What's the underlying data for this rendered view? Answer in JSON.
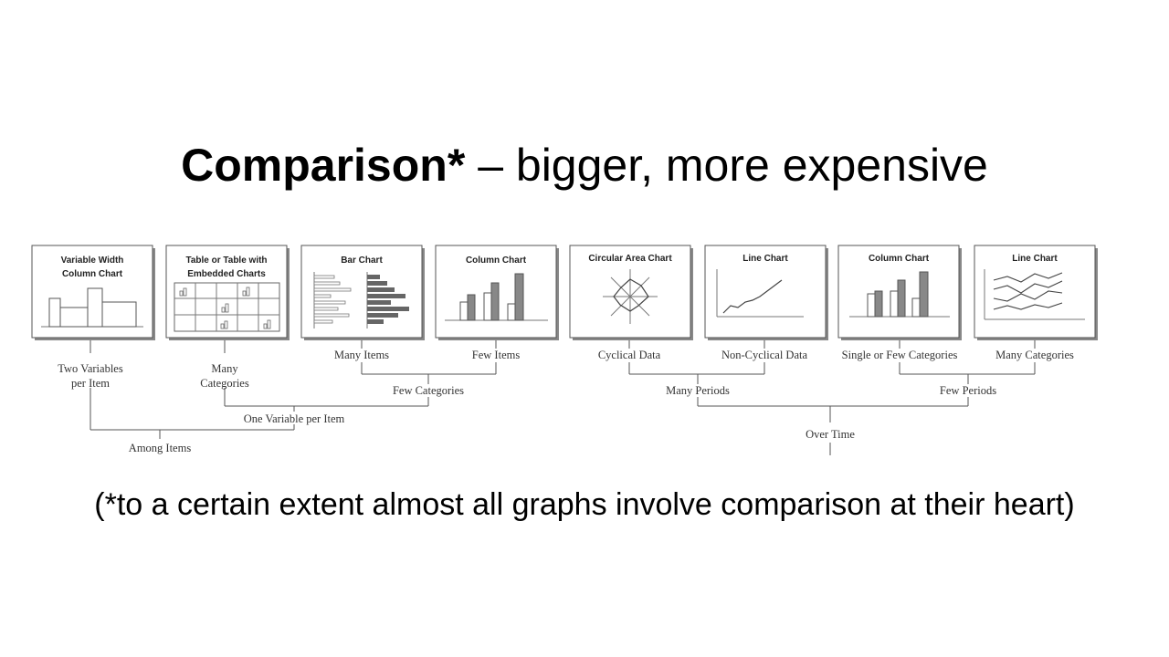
{
  "slide": {
    "title_bold": "Comparison*",
    "title_rest": " – bigger, more expensive",
    "footnote": "(*to a certain extent almost all graphs involve comparison at their heart)"
  },
  "charts": [
    {
      "key": "variable_width",
      "title": [
        "Variable Width",
        "Column Chart"
      ]
    },
    {
      "key": "table_embedded",
      "title": [
        "Table or Table with",
        "Embedded Charts"
      ]
    },
    {
      "key": "bar",
      "title": [
        "Bar Chart"
      ]
    },
    {
      "key": "column_few_items",
      "title": [
        "Column Chart"
      ]
    },
    {
      "key": "circular_area",
      "title": [
        "Circular Area Chart"
      ]
    },
    {
      "key": "line_noncyclical",
      "title": [
        "Line Chart"
      ]
    },
    {
      "key": "column_few_categories",
      "title": [
        "Column Chart"
      ]
    },
    {
      "key": "line_many_categories",
      "title": [
        "Line Chart"
      ]
    }
  ],
  "labels": {
    "two_variables": [
      "Two Variables",
      "per Item"
    ],
    "many_categories_left": [
      "Many",
      "Categories"
    ],
    "many_items": "Many Items",
    "few_items": "Few Items",
    "few_categories": "Few Categories",
    "one_variable": "One Variable per Item",
    "among_items": "Among Items",
    "cyclical": "Cyclical Data",
    "non_cyclical": "Non-Cyclical Data",
    "single_few": "Single or Few Categories",
    "many_categories_right": "Many Categories",
    "many_periods": "Many Periods",
    "few_periods": "Few Periods",
    "over_time": "Over Time"
  }
}
